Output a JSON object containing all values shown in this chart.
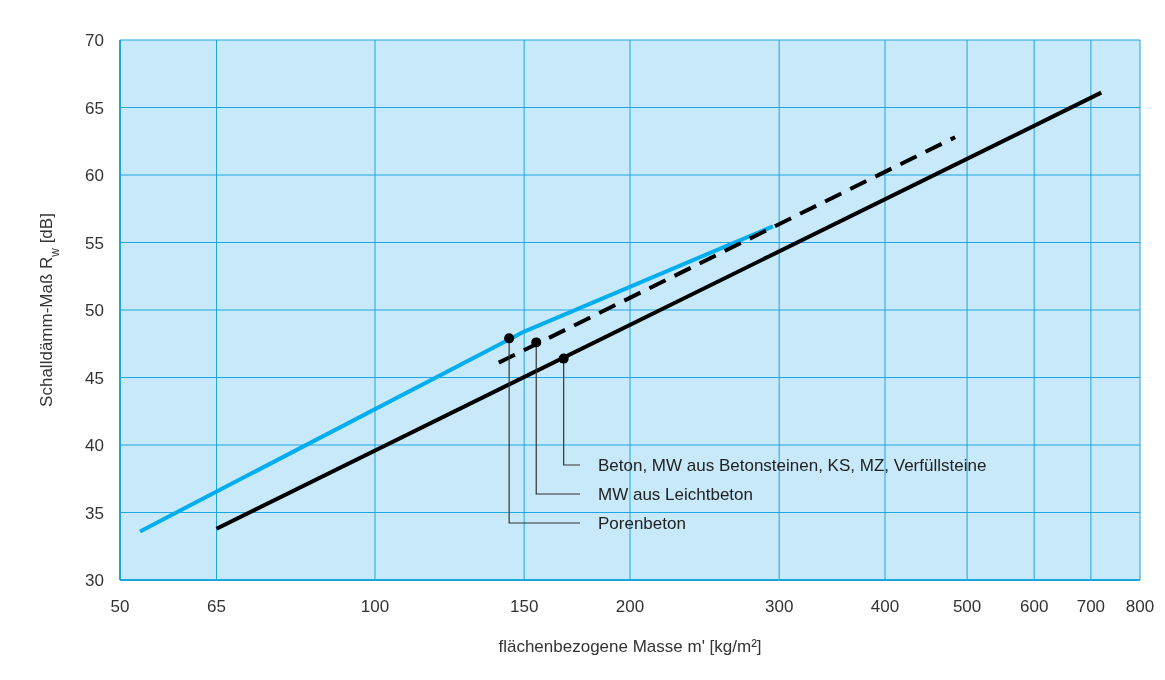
{
  "chart_data": {
    "type": "line",
    "xlabel": "flächenbezogene Masse m' [kg/m²]",
    "ylabel": "Schalldämm-Maß R$_{w}$ [dB]",
    "log": "x",
    "grid": true,
    "marker": "none",
    "xlim": [
      50,
      800
    ],
    "xticks": [
      50,
      65,
      100,
      150,
      200,
      300,
      400,
      500,
      600,
      700,
      800
    ],
    "ylim": [
      30,
      70
    ],
    "yticks": [
      30,
      35,
      40,
      45,
      50,
      55,
      60,
      65,
      70
    ],
    "series": [
      {
        "color": "#00aeef",
        "x": [
          52.8,
          150,
          295
        ],
        "values": [
          33.6,
          48.4,
          56.2
        ],
        "line_style": "solid"
      },
      {
        "color": "#000000",
        "x": [
          140,
          484
        ],
        "values": [
          46.1,
          62.8
        ],
        "line_style": "dashed"
      },
      {
        "color": "#000000",
        "x": [
          65,
          720
        ],
        "values": [
          33.8,
          66.1
        ],
        "line_style": "solid"
      }
    ],
    "annotations": [
      {
        "text": "Beton, MW aus Betonsteinen, KS, MZ, Verfüllsteine",
        "x": 167,
        "y": 46.4
      },
      {
        "text": "MW aus Leichtbeton",
        "x": 155,
        "y": 47.6
      },
      {
        "text": "Porenbeton",
        "x": 144,
        "y": 47.9
      }
    ]
  }
}
